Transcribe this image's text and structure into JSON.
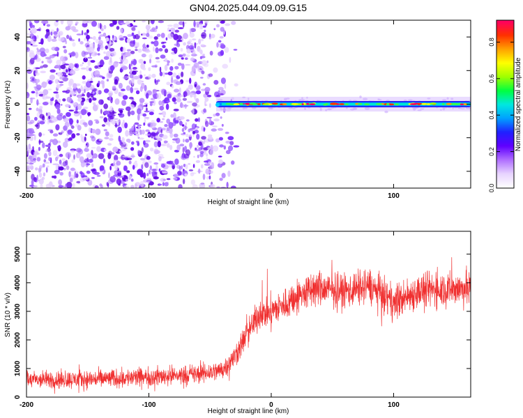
{
  "title": "GN04.2025.044.09.09.G15",
  "chart_data": [
    {
      "type": "heatmap",
      "name": "spectrogram",
      "xlabel": "Height of straight line (km)",
      "ylabel": "Frequency (Hz)",
      "xlim": [
        -200,
        163
      ],
      "ylim": [
        -50,
        50
      ],
      "xticks": [
        -200,
        -100,
        0,
        100
      ],
      "yticks": [
        -40,
        -20,
        0,
        20,
        40
      ],
      "colorbar": {
        "label": "Normalized spectral amplitude",
        "range": [
          0,
          0.92
        ],
        "ticks": [
          0.0,
          0.2,
          0.4,
          0.6,
          0.8
        ],
        "colormap": [
          "#ffffff",
          "#e8d4ff",
          "#b070ff",
          "#6000ff",
          "#2020ff",
          "#00a0ff",
          "#00e8e0",
          "#00ff40",
          "#a0ff00",
          "#ffff00",
          "#ffa000",
          "#ff3000",
          "#ff0060"
        ]
      },
      "noise_region_x": [
        -200,
        -45
      ],
      "signal_start_x": -45,
      "signal_center_hz": 0,
      "signal_halfwidth_hz": 2
    },
    {
      "type": "line",
      "name": "snr",
      "xlabel": "Height of straight line (km)",
      "ylabel": "SNR (10 * v/v)",
      "xlim": [
        -200,
        163
      ],
      "ylim": [
        0,
        5800
      ],
      "xticks": [
        -200,
        -100,
        0,
        100
      ],
      "yticks": [
        0,
        1000,
        2000,
        3000,
        4000,
        5000
      ],
      "color": "#f03030",
      "trend": {
        "x": [
          -200,
          -150,
          -100,
          -60,
          -40,
          -30,
          -20,
          -10,
          0,
          10,
          20,
          30,
          40,
          60,
          80,
          100,
          120,
          140,
          163
        ],
        "y": [
          600,
          620,
          700,
          800,
          950,
          1400,
          2200,
          2900,
          3000,
          3200,
          3500,
          3700,
          3800,
          3700,
          3900,
          3300,
          3700,
          3800,
          3800
        ]
      },
      "noise_amplitude": {
        "x": [
          -200,
          -40,
          -20,
          0,
          40,
          163
        ],
        "y": [
          450,
          500,
          700,
          800,
          900,
          900
        ]
      }
    }
  ]
}
